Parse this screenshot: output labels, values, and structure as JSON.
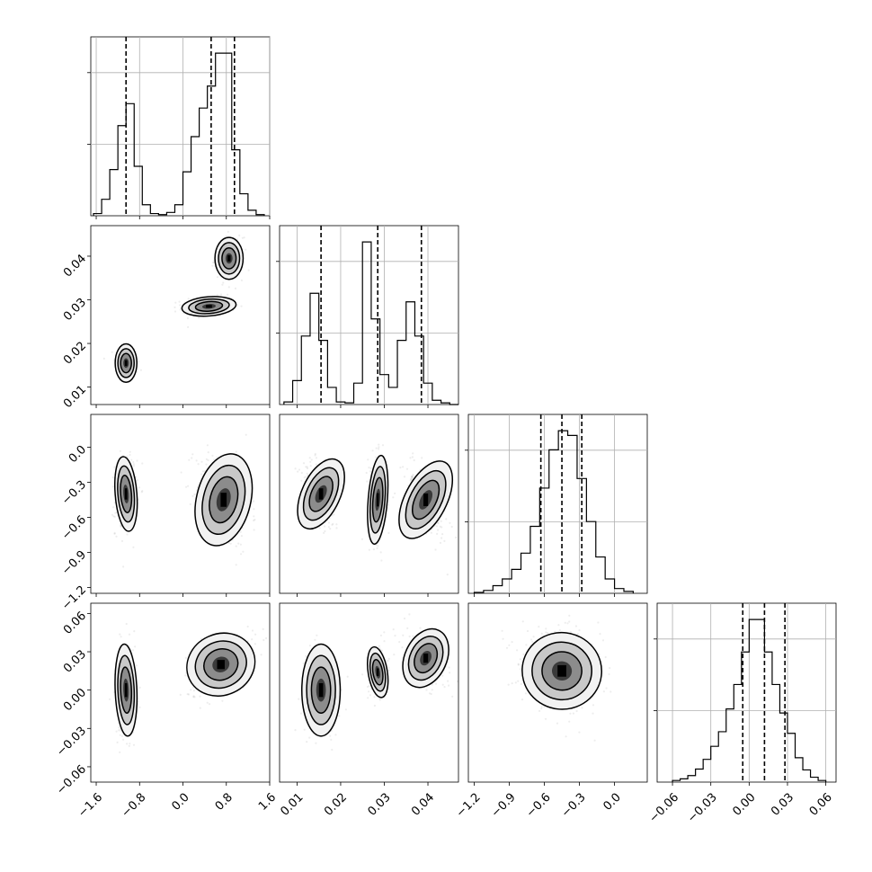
{
  "chart_data": {
    "type": "corner",
    "title": "",
    "parameters": [
      {
        "range": [
          -1.7,
          1.6
        ],
        "ticks": [
          -1.6,
          -0.8,
          0.0,
          0.8,
          1.6
        ],
        "tick_labels": [
          "−1.6",
          "−0.8",
          "0.0",
          "0.8",
          "1.6"
        ],
        "quantiles": [
          -1.05,
          0.52,
          0.95
        ]
      },
      {
        "range": [
          0.006,
          0.047
        ],
        "ticks": [
          0.01,
          0.02,
          0.03,
          0.04
        ],
        "tick_labels": [
          "0.01",
          "0.02",
          "0.03",
          "0.04"
        ],
        "quantiles": [
          0.0155,
          0.0285,
          0.0385
        ]
      },
      {
        "range": [
          -1.25,
          0.28
        ],
        "ticks": [
          -1.2,
          -0.9,
          -0.6,
          -0.3,
          0.0
        ],
        "tick_labels": [
          "−1.2",
          "−0.9",
          "−0.6",
          "−0.3",
          "0.0"
        ],
        "quantiles": [
          -0.63,
          -0.45,
          -0.28
        ]
      },
      {
        "range": [
          -0.072,
          0.068
        ],
        "ticks": [
          -0.06,
          -0.03,
          0.0,
          0.03,
          0.06
        ],
        "tick_labels": [
          "−0.06",
          "−0.03",
          "0.00",
          "0.03",
          "0.06"
        ],
        "quantiles": [
          -0.005,
          0.012,
          0.028
        ]
      }
    ],
    "histograms": [
      {
        "param": 0,
        "bins": [
          -1.65,
          -1.5,
          -1.35,
          -1.2,
          -1.05,
          -0.9,
          -0.75,
          -0.6,
          -0.45,
          -0.3,
          -0.15,
          0.0,
          0.15,
          0.3,
          0.45,
          0.6,
          0.75,
          0.9,
          1.05,
          1.2,
          1.35,
          1.5
        ],
        "counts": [
          2,
          15,
          42,
          82,
          102,
          45,
          10,
          2,
          1,
          3,
          10,
          40,
          72,
          98,
          118,
          148,
          148,
          60,
          20,
          5,
          1
        ]
      },
      {
        "param": 1,
        "bins": [
          0.007,
          0.009,
          0.011,
          0.013,
          0.015,
          0.017,
          0.019,
          0.021,
          0.023,
          0.025,
          0.027,
          0.029,
          0.031,
          0.033,
          0.035,
          0.037,
          0.039,
          0.041,
          0.043,
          0.045,
          0.047
        ],
        "counts": [
          3,
          28,
          80,
          130,
          75,
          20,
          3,
          2,
          25,
          190,
          100,
          35,
          20,
          75,
          120,
          80,
          25,
          5,
          2,
          0
        ]
      },
      {
        "param": 2,
        "bins": [
          -1.2,
          -1.12,
          -1.04,
          -0.96,
          -0.88,
          -0.8,
          -0.72,
          -0.64,
          -0.56,
          -0.48,
          -0.4,
          -0.32,
          -0.24,
          -0.16,
          -0.08,
          0.0,
          0.08,
          0.16
        ],
        "counts": [
          1,
          3,
          8,
          15,
          25,
          42,
          70,
          110,
          150,
          170,
          165,
          120,
          75,
          38,
          15,
          5,
          2
        ]
      },
      {
        "param": 3,
        "bins": [
          -0.06,
          -0.054,
          -0.048,
          -0.042,
          -0.036,
          -0.03,
          -0.024,
          -0.018,
          -0.012,
          -0.006,
          0.0,
          0.006,
          0.012,
          0.018,
          0.024,
          0.03,
          0.036,
          0.042,
          0.048,
          0.054,
          0.06
        ],
        "counts": [
          2,
          4,
          8,
          16,
          28,
          44,
          62,
          90,
          120,
          160,
          200,
          200,
          160,
          120,
          85,
          60,
          30,
          15,
          6,
          2
        ]
      }
    ],
    "scatter_panels": [
      {
        "x": 0,
        "y": 1,
        "clusters": [
          {
            "mean": [
              -1.05,
              0.0155
            ],
            "sd": [
              0.1,
              0.0022
            ],
            "rho": 0.0
          },
          {
            "mean": [
              0.48,
              0.0285
            ],
            "sd": [
              0.25,
              0.0011
            ],
            "rho": 0.1
          },
          {
            "mean": [
              0.85,
              0.0395
            ],
            "sd": [
              0.13,
              0.0024
            ],
            "rho": 0.0
          }
        ]
      },
      {
        "x": 0,
        "y": 2,
        "clusters": [
          {
            "mean": [
              -1.05,
              -0.4
            ],
            "sd": [
              0.1,
              0.16
            ],
            "rho": 0.1
          },
          {
            "mean": [
              0.75,
              -0.45
            ],
            "sd": [
              0.25,
              0.2
            ],
            "rho": -0.3
          }
        ]
      },
      {
        "x": 1,
        "y": 2,
        "clusters": [
          {
            "mean": [
              0.0155,
              -0.4
            ],
            "sd": [
              0.0022,
              0.16
            ],
            "rho": -0.55
          },
          {
            "mean": [
              0.0285,
              -0.45
            ],
            "sd": [
              0.0011,
              0.19
            ],
            "rho": -0.1
          },
          {
            "mean": [
              0.0395,
              -0.45
            ],
            "sd": [
              0.0024,
              0.18
            ],
            "rho": -0.6
          }
        ]
      },
      {
        "x": 0,
        "y": 3,
        "clusters": [
          {
            "mean": [
              -1.05,
              0.0
            ],
            "sd": [
              0.1,
              0.018
            ],
            "rho": 0.05
          },
          {
            "mean": [
              0.7,
              0.02
            ],
            "sd": [
              0.32,
              0.012
            ],
            "rho": 0.55
          }
        ]
      },
      {
        "x": 1,
        "y": 3,
        "clusters": [
          {
            "mean": [
              0.0155,
              0.0
            ],
            "sd": [
              0.0022,
              0.018
            ],
            "rho": 0.0
          },
          {
            "mean": [
              0.0285,
              0.014
            ],
            "sd": [
              0.0011,
              0.01
            ],
            "rho": 0.2
          },
          {
            "mean": [
              0.0395,
              0.025
            ],
            "sd": [
              0.0024,
              0.012
            ],
            "rho": -0.55
          }
        ]
      },
      {
        "x": 2,
        "y": 3,
        "clusters": [
          {
            "mean": [
              -0.45,
              0.015
            ],
            "sd": [
              0.17,
              0.015
            ],
            "rho": -0.15
          }
        ]
      }
    ]
  }
}
